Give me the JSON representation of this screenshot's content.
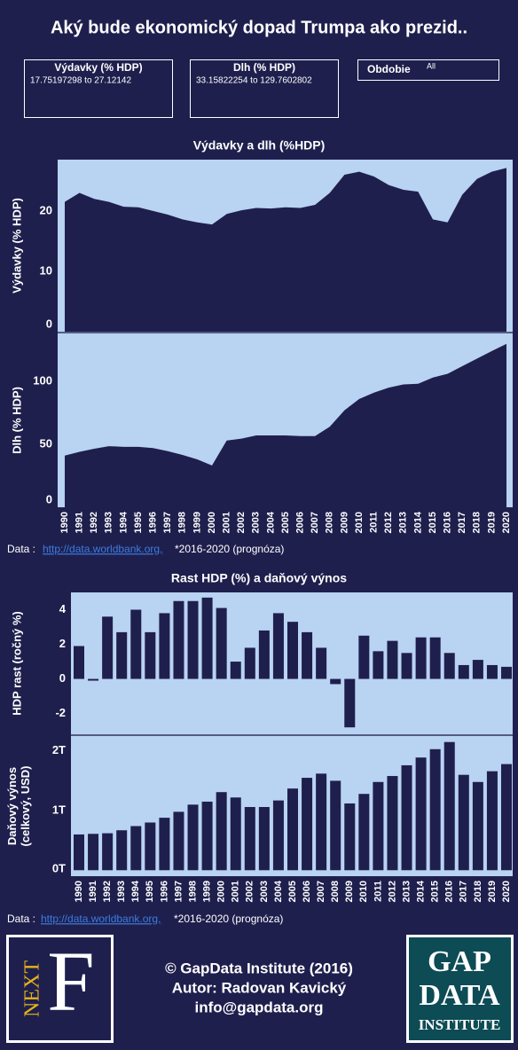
{
  "page_title": "Aký bude ekonomický dopad Trumpa ako prezid..",
  "filters": [
    {
      "label": "Výdavky (% HDP)",
      "range": "17.75197298 to 27.12142"
    },
    {
      "label": "Dlh (% HDP)",
      "range": "33.15822254 to 129.7602802"
    },
    {
      "label": "Obdobie",
      "range": "All"
    }
  ],
  "source": {
    "prefix": "Data :",
    "link": "http://data.worldbank.org,",
    "note": "*2016-2020 (prognóza)"
  },
  "footer": [
    "© GapData Institute (2016)",
    "Autor: Radovan Kavický",
    "info@gapdata.org"
  ],
  "logos": {
    "left": [
      "NEXT",
      "F"
    ],
    "right": [
      "GAP",
      "DATA",
      "INSTITUTE"
    ]
  },
  "chart_data": [
    {
      "type": "area",
      "title": "Výdavky a dlh (%HDP)",
      "color": "#1f1f4e",
      "background": "#b9d3f2",
      "grid": false,
      "categories": [
        "1990",
        "1991",
        "1992",
        "1993",
        "1994",
        "1995",
        "1996",
        "1997",
        "1998",
        "1999",
        "2000",
        "2001",
        "2002",
        "2003",
        "2004",
        "2005",
        "2006",
        "2007",
        "2008",
        "2009",
        "2010",
        "2011",
        "2012",
        "2013",
        "2014",
        "2015",
        "2016",
        "2017",
        "2018",
        "2019",
        "2020"
      ],
      "panels": [
        {
          "ylabel": [
            "Výdavky (% HDP)"
          ],
          "ylim": [
            0,
            28.5
          ],
          "yticks": [
            0,
            10,
            20
          ],
          "values": [
            21.5,
            23,
            22,
            21.5,
            20.7,
            20.6,
            20,
            19.4,
            18.6,
            18.1,
            17.75,
            19.5,
            20.1,
            20.5,
            20.4,
            20.6,
            20.5,
            21,
            23,
            26,
            26.5,
            25.7,
            24.3,
            23.5,
            23.2,
            18.6,
            18.1,
            22.7,
            25.3,
            26.5,
            27.12
          ]
        },
        {
          "ylabel": [
            "Dlh (% HDP)"
          ],
          "ylim": [
            0,
            138
          ],
          "yticks": [
            0,
            50,
            100
          ],
          "values": [
            41,
            44,
            46.5,
            48.5,
            48,
            48,
            47,
            44.5,
            41.5,
            38,
            33.16,
            53,
            54.5,
            57,
            57,
            57,
            56.5,
            56.5,
            64,
            77,
            86,
            91,
            95,
            97.5,
            98,
            103,
            106,
            112,
            118,
            124,
            129.76
          ]
        }
      ]
    },
    {
      "type": "bar",
      "title": "Rast HDP (%) a daňový výnos",
      "color": "#1f1f4e",
      "background": "#b9d3f2",
      "grid": false,
      "categories": [
        "1990",
        "1991",
        "1992",
        "1993",
        "1994",
        "1995",
        "1996",
        "1997",
        "1998",
        "1999",
        "2000",
        "2001",
        "2002",
        "2003",
        "2004",
        "2005",
        "2006",
        "2007",
        "2008",
        "2009",
        "2010",
        "2011",
        "2012",
        "2013",
        "2014",
        "2015",
        "2016",
        "2017",
        "2018",
        "2019",
        "2020"
      ],
      "panels": [
        {
          "ylabel": [
            "HDP rast (ročný %)"
          ],
          "ylim": [
            -3.2,
            5
          ],
          "yticks": [
            -2,
            0,
            2,
            4
          ],
          "values": [
            1.9,
            -0.1,
            3.6,
            2.7,
            4.0,
            2.7,
            3.8,
            4.5,
            4.5,
            4.7,
            4.1,
            1.0,
            1.8,
            2.8,
            3.8,
            3.3,
            2.7,
            1.8,
            -0.3,
            -2.8,
            2.5,
            1.6,
            2.2,
            1.5,
            2.4,
            2.4,
            1.5,
            0.8,
            1.1,
            0.8,
            0.7
          ]
        },
        {
          "ylabel": [
            "Daňový výnos",
            "(celkový, USD)"
          ],
          "ylim": [
            -100000000000,
            2250000000000
          ],
          "yticks": [
            {
              "value": 0,
              "label": "0T"
            },
            {
              "value": 1000000000000,
              "label": "1T"
            },
            {
              "value": 2000000000000,
              "label": "2T"
            }
          ],
          "values": [
            600000000000,
            610000000000,
            620000000000,
            670000000000,
            740000000000,
            800000000000,
            880000000000,
            980000000000,
            1100000000000,
            1150000000000,
            1310000000000,
            1220000000000,
            1060000000000,
            1060000000000,
            1170000000000,
            1370000000000,
            1550000000000,
            1620000000000,
            1500000000000,
            1120000000000,
            1280000000000,
            1480000000000,
            1580000000000,
            1760000000000,
            1890000000000,
            2030000000000,
            2150000000000,
            1600000000000,
            1480000000000,
            1660000000000,
            1780000000000
          ]
        }
      ]
    }
  ]
}
